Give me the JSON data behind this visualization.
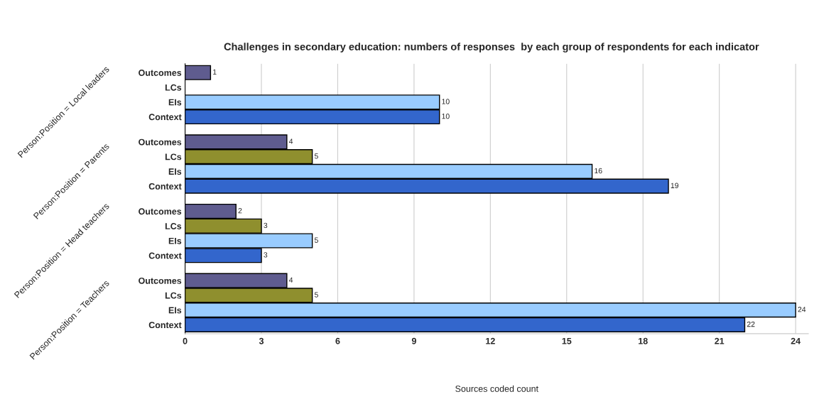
{
  "chart_data": {
    "type": "bar",
    "orientation": "horizontal",
    "title": "Challenges in secondary education: numbers of responses  by each group of respondents for each indicator",
    "xlabel": "Sources coded count",
    "categories": [
      "Outcomes",
      "LCs",
      "EIs",
      "Context",
      "Outcomes",
      "LCs",
      "EIs",
      "Context",
      "Outcomes",
      "LCs",
      "EIs",
      "Context",
      "Outcomes",
      "LCs",
      "EIs",
      "Context"
    ],
    "values": [
      1,
      null,
      10,
      10,
      4,
      5,
      16,
      19,
      2,
      3,
      5,
      3,
      4,
      5,
      24,
      22
    ],
    "colors": [
      "#5f5c8f",
      "#8f8f2e",
      "#99ccff",
      "#3366cc",
      "#5f5c8f",
      "#8f8f2e",
      "#99ccff",
      "#3366cc",
      "#5f5c8f",
      "#8f8f2e",
      "#99ccff",
      "#3366cc",
      "#5f5c8f",
      "#8f8f2e",
      "#99ccff",
      "#3366cc"
    ],
    "data_labels": true,
    "xlim": [
      0,
      24.5
    ],
    "xticks": [
      0,
      3,
      6,
      9,
      12,
      15,
      18,
      21,
      24
    ],
    "grid": "x",
    "annotations": [
      "Person:Position = Local leaders",
      "Person:Position = Parents",
      "Person:Position = Head teachers",
      "Person:Position = Teachers"
    ]
  }
}
